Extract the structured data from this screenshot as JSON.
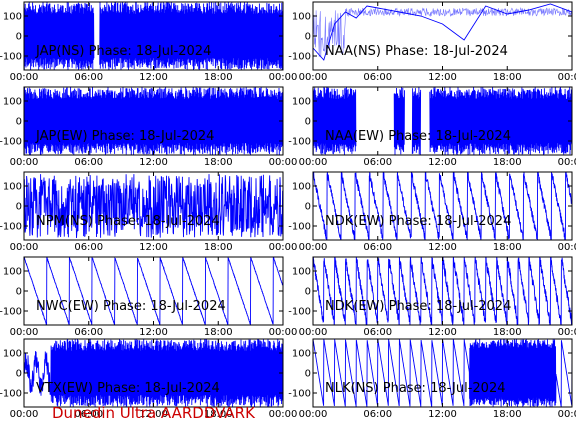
{
  "footer_text": "Dunedin Ultra AARDDVARK",
  "colors": {
    "trace": "#0000ff",
    "axes": "#000000",
    "background": "#ffffff",
    "footer": "#cc0000"
  },
  "chart_data": [
    {
      "type": "line",
      "title": "JAP(NS) Phase: 18-Jul-2024",
      "ylim": [
        -170,
        170
      ],
      "yticks": [
        100,
        0,
        -100
      ],
      "xticks": [
        "00:00",
        "06:00",
        "12:00",
        "18:00",
        "00:00"
      ],
      "pattern": "dense",
      "gaps": [
        [
          6.5,
          7.0
        ]
      ],
      "smooth_before": 0
    },
    {
      "type": "line",
      "title": "NAA(NS) Phase: 18-Jul-2024",
      "ylim": [
        -170,
        170
      ],
      "yticks": [
        100,
        0,
        -100
      ],
      "xticks": [
        "00:00",
        "06:00",
        "12:00",
        "18:00",
        "00:00"
      ],
      "pattern": "drift",
      "series": [
        {
          "x": [
            0,
            1,
            2,
            3,
            4,
            5,
            6,
            8,
            10,
            12,
            14,
            16,
            18,
            20,
            22,
            24
          ],
          "y": [
            -60,
            -120,
            60,
            120,
            90,
            150,
            140,
            120,
            100,
            60,
            -20,
            150,
            110,
            130,
            160,
            120
          ]
        }
      ]
    },
    {
      "type": "line",
      "title": "JAP(EW) Phase: 18-Jul-2024",
      "ylim": [
        -170,
        170
      ],
      "yticks": [
        100,
        0,
        -100
      ],
      "xticks": [
        "00:00",
        "06:00",
        "12:00",
        "18:00",
        "00:00"
      ],
      "pattern": "dense",
      "gaps": [],
      "smooth_before": 0
    },
    {
      "type": "line",
      "title": "NAA(EW) Phase: 18-Jul-2024",
      "ylim": [
        -170,
        170
      ],
      "yticks": [
        100,
        0,
        -100
      ],
      "xticks": [
        "00:00",
        "06:00",
        "12:00",
        "18:00",
        "00:00"
      ],
      "pattern": "dense",
      "gaps": [
        [
          4.0,
          7.5
        ],
        [
          8.5,
          9.2
        ],
        [
          10.0,
          10.8
        ]
      ],
      "smooth_before": 0
    },
    {
      "type": "line",
      "title": "NPM(NS) Phase: 18-Jul-2024",
      "ylim": [
        -170,
        170
      ],
      "yticks": [
        100,
        0,
        -100
      ],
      "xticks": [
        "00:00",
        "06:00",
        "12:00",
        "18:00",
        "00:00"
      ],
      "pattern": "noisy"
    },
    {
      "type": "line",
      "title": "NDK(EW) Phase: 18-Jul-2024",
      "ylim": [
        -170,
        170
      ],
      "yticks": [
        100,
        0,
        -100
      ],
      "xticks": [
        "00:00",
        "06:00",
        "12:00",
        "18:00",
        "00:00"
      ],
      "pattern": "sawtooth",
      "period": 1.3,
      "jitter": 40
    },
    {
      "type": "line",
      "title": "NWC(EW) Phase: 18-Jul-2024",
      "ylim": [
        -170,
        170
      ],
      "yticks": [
        100,
        0,
        -100
      ],
      "xticks": [
        "00:00",
        "06:00",
        "12:00",
        "18:00",
        "00:00"
      ],
      "pattern": "sawtooth",
      "period": 2.1,
      "jitter": 6
    },
    {
      "type": "line",
      "title": "NDK(EW) Phase: 18-Jul-2024",
      "ylim": [
        -170,
        170
      ],
      "yticks": [
        100,
        0,
        -100
      ],
      "xticks": [
        "00:00",
        "06:00",
        "12:00",
        "18:00",
        "00:00"
      ],
      "pattern": "sawtooth",
      "period": 1.0,
      "jitter": 50
    },
    {
      "type": "line",
      "title": "VTX(EW) Phase: 18-Jul-2024",
      "ylim": [
        -170,
        170
      ],
      "yticks": [
        100,
        0,
        -100
      ],
      "xticks": [
        "00:00",
        "06:00",
        "12:00",
        "18:00",
        "00:00"
      ],
      "pattern": "dense",
      "gaps": [],
      "smooth_before": 2.5
    },
    {
      "type": "line",
      "title": "NLK(NS) Phase: 18-Jul-2024",
      "ylim": [
        -170,
        170
      ],
      "yticks": [
        100,
        0,
        -100
      ],
      "xticks": [
        "00:00",
        "06:00",
        "12:00",
        "18:00",
        "00:00"
      ],
      "pattern": "sawtooth-dense",
      "period": 1.0,
      "dense_from": 14.5
    }
  ]
}
